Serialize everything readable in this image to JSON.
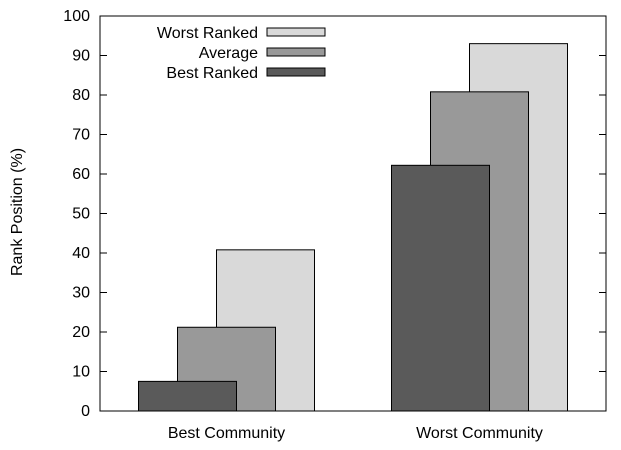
{
  "chart_data": {
    "type": "bar",
    "categories": [
      "Best Community",
      "Worst Community"
    ],
    "series": [
      {
        "name": "Best Ranked",
        "values": [
          7.5,
          62.2
        ],
        "color": "#5a5a5a"
      },
      {
        "name": "Average",
        "values": [
          21.2,
          80.8
        ],
        "color": "#999999"
      },
      {
        "name": "Worst Ranked",
        "values": [
          40.8,
          93.0
        ],
        "color": "#d9d9d9"
      }
    ],
    "legend_order": [
      "Worst Ranked",
      "Average",
      "Best Ranked"
    ],
    "legend_position": "top-left",
    "ylabel": "Rank Position (%)",
    "xlabel": "",
    "ylim": [
      0,
      100
    ],
    "yticks": [
      0,
      10,
      20,
      30,
      40,
      50,
      60,
      70,
      80,
      90,
      100
    ],
    "grid": false,
    "bar_outline_color": "#000000"
  }
}
